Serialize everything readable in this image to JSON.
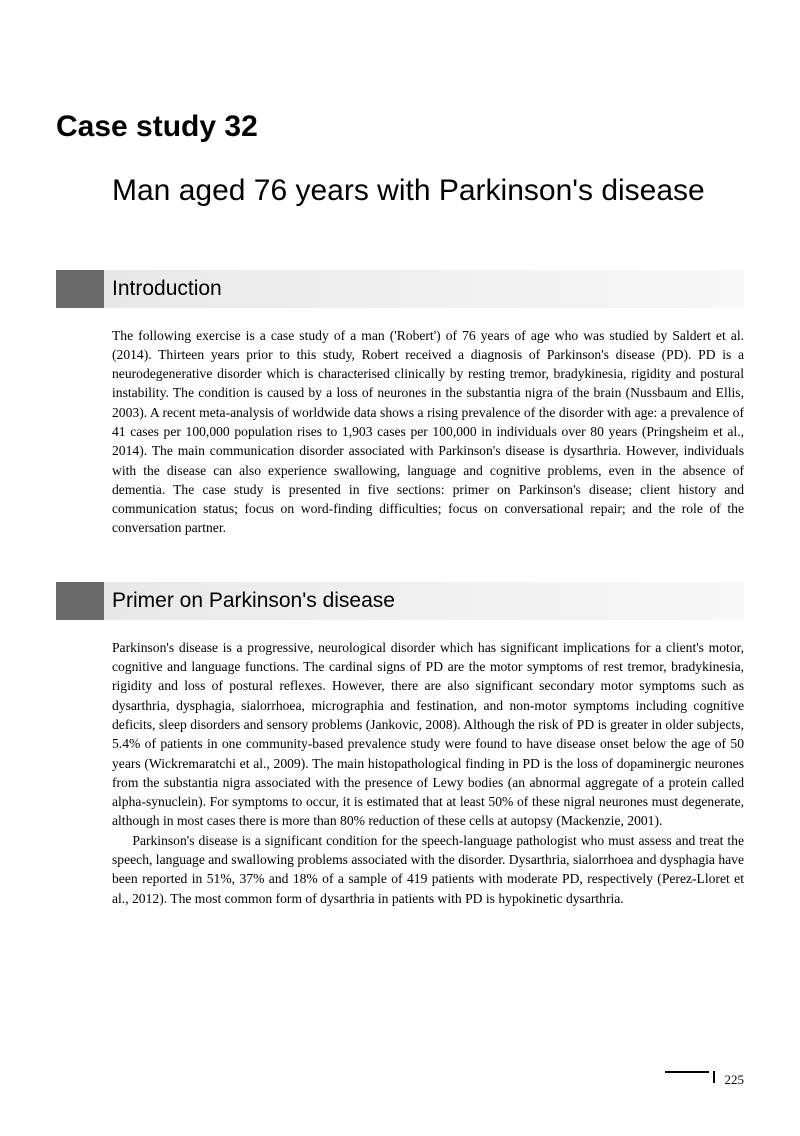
{
  "case_label": "Case study 32",
  "case_title": "Man aged 76 years with Parkinson's disease",
  "sections": [
    {
      "heading": "Introduction",
      "paragraphs": [
        "The following exercise is a case study of a man ('Robert') of 76 years of age who was studied by Saldert et al. (2014). Thirteen years prior to this study, Robert received a diagnosis of Parkinson's disease (PD). PD is a neurodegenerative disorder which is characterised clinically by resting tremor, bradykinesia, rigidity and postural instability. The condition is caused by a loss of neurones in the substantia nigra of the brain (Nussbaum and Ellis, 2003). A recent meta-analysis of worldwide data shows a rising prevalence of the disorder with age: a prevalence of 41 cases per 100,000 population rises to 1,903 cases per 100,000 in individuals over 80 years (Pringsheim et al., 2014). The main communication disorder associated with Parkinson's disease is dysarthria. However, individuals with the disease can also experience swallowing, language and cognitive problems, even in the absence of dementia. The case study is presented in five sections: primer on Parkinson's disease; client history and communication status; focus on word-finding difficulties; focus on conversational repair; and the role of the conversation partner."
      ]
    },
    {
      "heading": "Primer on Parkinson's disease",
      "paragraphs": [
        "Parkinson's disease is a progressive, neurological disorder which has significant implications for a client's motor, cognitive and language functions. The cardinal signs of PD are the motor symptoms of rest tremor, bradykinesia, rigidity and loss of postural reflexes. However, there are also significant secondary motor symptoms such as dysarthria, dysphagia, sialorrhoea, micrographia and festination, and non-motor symptoms including cognitive deficits, sleep disorders and sensory problems (Jankovic, 2008). Although the risk of PD is greater in older subjects, 5.4% of patients in one community-based prevalence study were found to have disease onset below the age of 50 years (Wickremaratchi et al., 2009). The main histopathological finding in PD is the loss of dopaminergic neurones from the substantia nigra associated with the presence of Lewy bodies (an abnormal aggregate of a protein called alpha-synuclein). For symptoms to occur, it is estimated that at least 50% of these nigral neurones must degenerate, although in most cases there is more than 80% reduction of these cells at autopsy (Mackenzie, 2001).",
        "Parkinson's disease is a significant condition for the speech-language pathologist who must assess and treat the speech, language and swallowing problems associated with the disorder. Dysarthria, sialorrhoea and dysphagia have been reported in 51%, 37% and 18% of a sample of 419 patients with moderate PD, respectively (Perez-Lloret et al., 2012). The most common form of dysarthria in patients with PD is hypokinetic dysarthria."
      ]
    }
  ],
  "page_number": "225"
}
